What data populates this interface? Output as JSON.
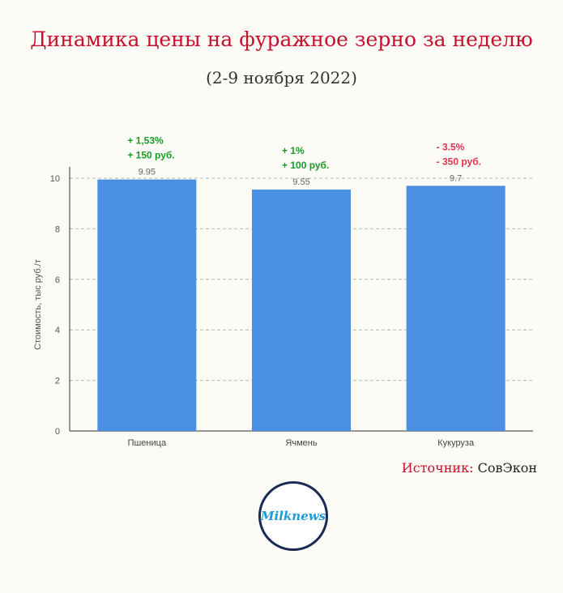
{
  "header": {
    "title": "Динамика цены на фуражное зерно за неделю",
    "subtitle": "(2-9 ноября 2022)"
  },
  "source": {
    "label": "Источник:",
    "value": "СовЭкон"
  },
  "logo": {
    "text": "Milknews"
  },
  "colors": {
    "bar": "#4a8fe2",
    "up": "#1a9a2a",
    "down": "#e0314e",
    "title": "#c8102e"
  },
  "chart_data": {
    "type": "bar",
    "title": "",
    "xlabel": "",
    "ylabel": "Стоимость, тыс руб./т",
    "ylim": [
      0,
      10
    ],
    "yticks": [
      0,
      2,
      4,
      6,
      8,
      10
    ],
    "grid": true,
    "categories": [
      "Пшеница",
      "Ячмень",
      "Кукуруза"
    ],
    "values": [
      9.95,
      9.55,
      9.7
    ],
    "value_labels": [
      "9.95",
      "9.55",
      "9.7"
    ],
    "changes": [
      {
        "lines": [
          "+ 1,53%",
          "+ 150 руб."
        ],
        "direction": "up"
      },
      {
        "lines": [
          "+ 1%",
          "+ 100 руб."
        ],
        "direction": "up"
      },
      {
        "lines": [
          "- 3.5%",
          "- 350 руб."
        ],
        "direction": "down"
      }
    ]
  }
}
